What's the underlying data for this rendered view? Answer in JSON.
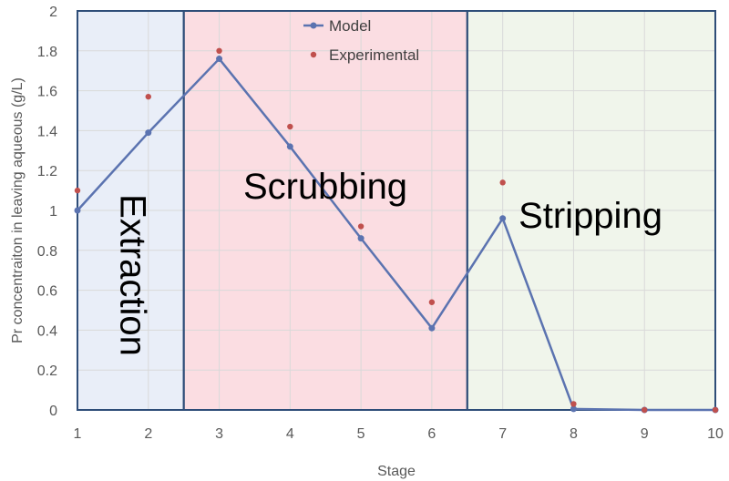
{
  "chart_data": {
    "type": "line",
    "title": "",
    "xlabel": "Stage",
    "ylabel": "Pr concentraiton in leaving aqueous (g/L)",
    "xlim": [
      1,
      10
    ],
    "ylim": [
      0,
      2
    ],
    "x_ticks": [
      1,
      2,
      3,
      4,
      5,
      6,
      7,
      8,
      9,
      10
    ],
    "y_ticks": [
      0,
      0.2,
      0.4,
      0.6,
      0.8,
      1,
      1.2,
      1.4,
      1.6,
      1.8,
      2
    ],
    "grid": true,
    "legend_position": "top-center",
    "series": [
      {
        "name": "Model",
        "style": "line-with-markers",
        "color": "#5b73b0",
        "x": [
          1,
          2,
          3,
          4,
          5,
          6,
          7,
          8,
          9,
          10
        ],
        "y": [
          1.0,
          1.39,
          1.76,
          1.32,
          0.86,
          0.41,
          0.96,
          0.005,
          0.0,
          0.0
        ]
      },
      {
        "name": "Experimental",
        "style": "markers",
        "color": "#c0504d",
        "x": [
          1,
          2,
          3,
          4,
          5,
          6,
          7,
          8,
          9,
          10
        ],
        "y": [
          1.1,
          1.57,
          1.8,
          1.42,
          0.92,
          0.54,
          1.14,
          0.03,
          0.0,
          0.0
        ]
      }
    ],
    "regions": [
      {
        "label": "Extraction",
        "x_start": 1,
        "x_end": 2.5,
        "color": "#e9eef8",
        "label_orientation": "vertical"
      },
      {
        "label": "Scrubbing",
        "x_start": 2.5,
        "x_end": 6.5,
        "color": "#fbdde2",
        "label_orientation": "horizontal"
      },
      {
        "label": "Stripping",
        "x_start": 6.5,
        "x_end": 10,
        "color": "#f0f5eb",
        "label_orientation": "horizontal"
      }
    ],
    "region_border_color": "#2e4d78"
  }
}
